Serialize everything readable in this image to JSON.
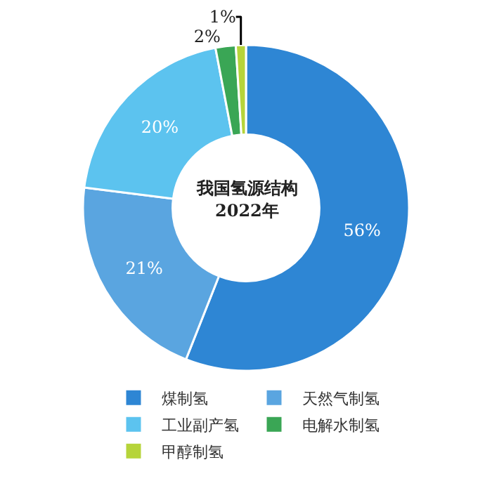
{
  "chart_data": {
    "type": "donut",
    "title": "我国氢源结构",
    "subtitle": "2022年",
    "categories": [
      "煤制氢",
      "天然气制氢",
      "工业副产氢",
      "电解水制氢",
      "甲醇制氢"
    ],
    "values": [
      56,
      21,
      20,
      2,
      1
    ],
    "colors": [
      "#2e86d4",
      "#5aa5e0",
      "#5cc3ef",
      "#3aa655",
      "#b6d43a"
    ],
    "value_labels": [
      "56%",
      "21%",
      "20%",
      "2%",
      "1%"
    ],
    "legend": "bottom"
  }
}
